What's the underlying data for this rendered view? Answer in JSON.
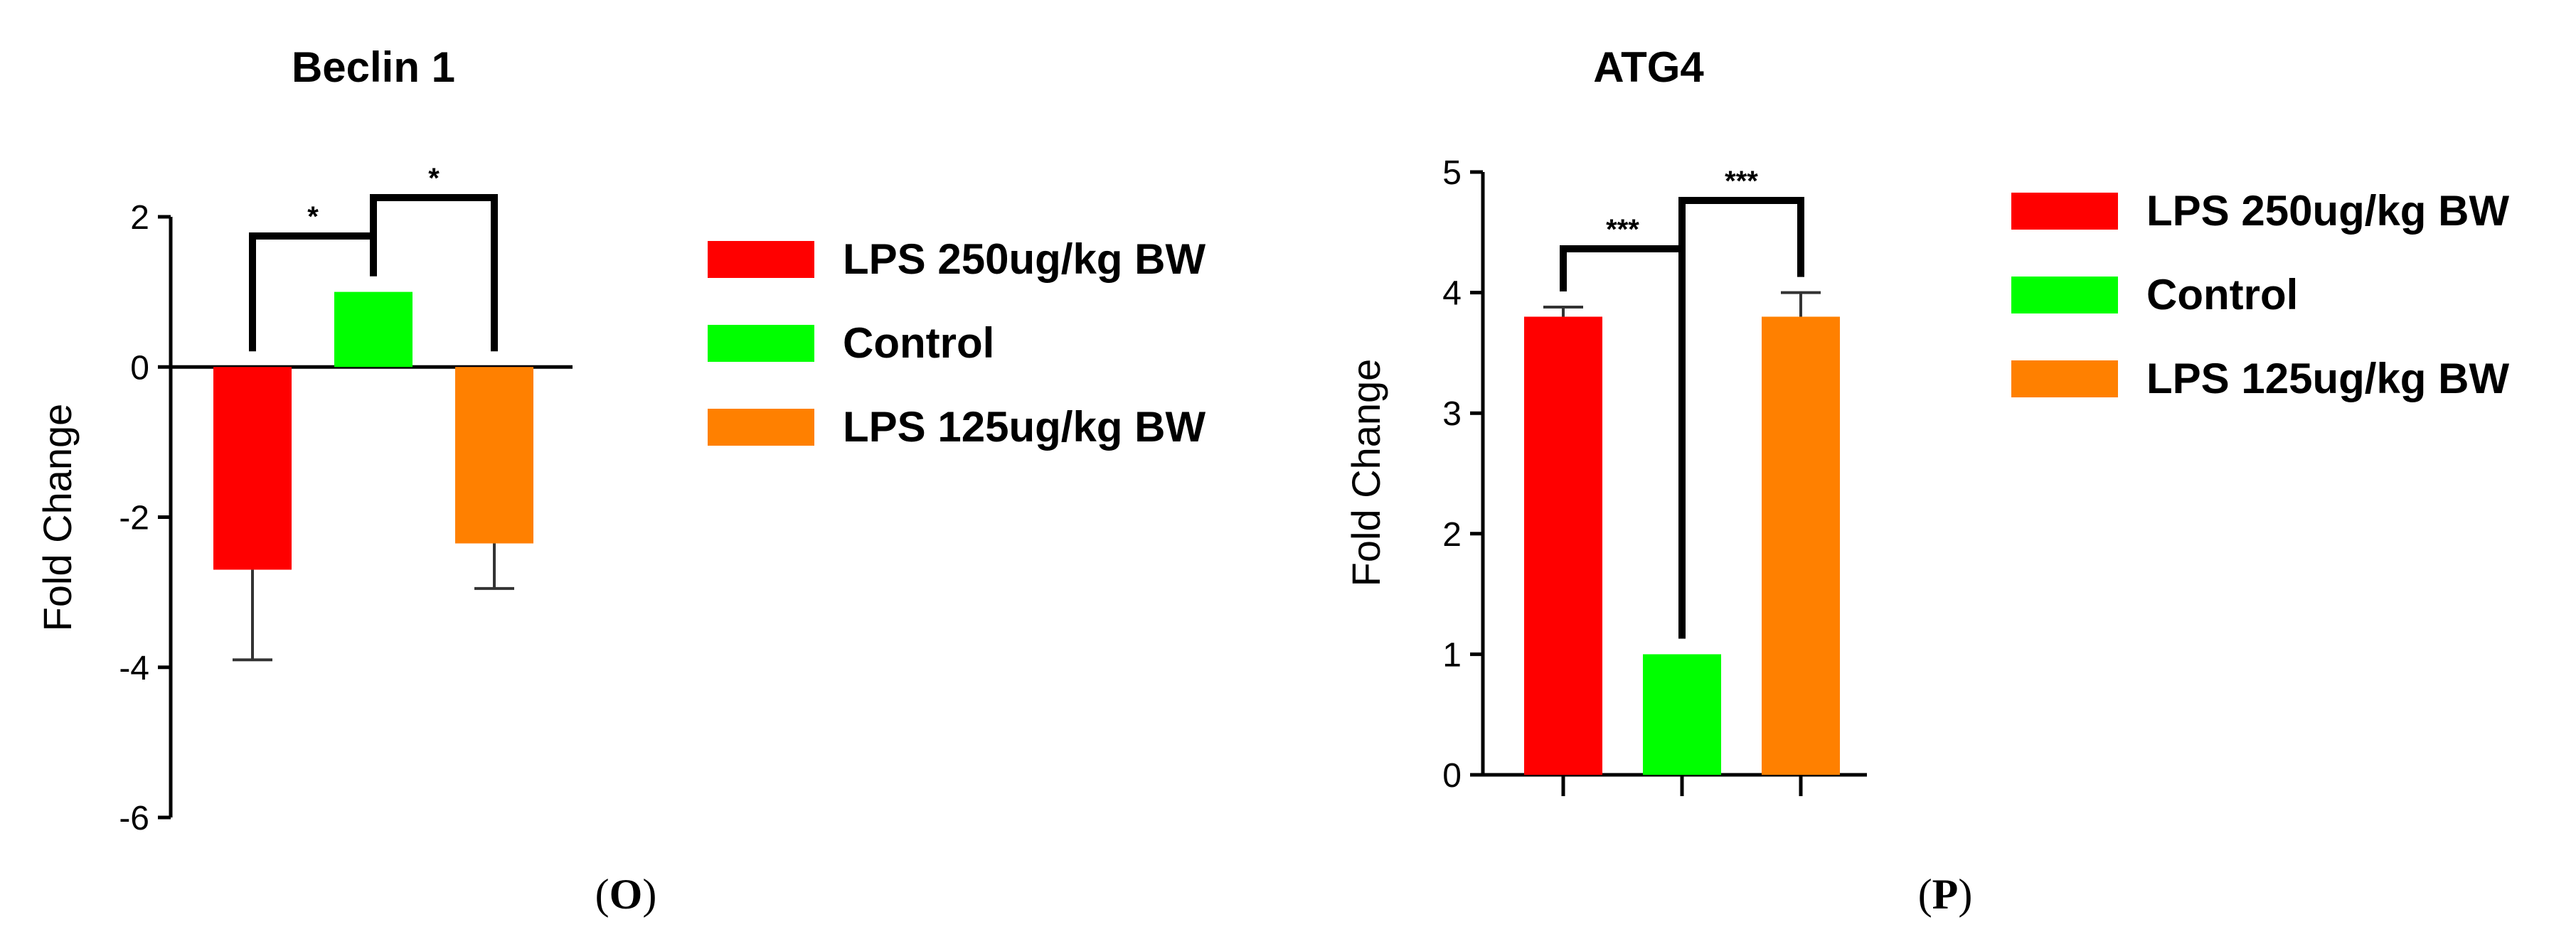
{
  "chart_data": [
    {
      "type": "bar",
      "title": "Beclin 1",
      "panel": "O",
      "xlabel": "",
      "ylabel": "Fold Change",
      "ylim": [
        -6,
        2
      ],
      "yticks": [
        2,
        0,
        -2,
        -4,
        -6
      ],
      "categories": [
        "LPS 250ug/kg BW",
        "Control",
        "LPS 125ug/kg BW"
      ],
      "values": [
        -2.7,
        1.0,
        -2.35
      ],
      "errors": [
        1.2,
        0,
        0.6
      ],
      "colors": [
        "#ff0000",
        "#00ff00",
        "#ff8000"
      ],
      "significance": [
        {
          "from": 0,
          "to": 1,
          "label": "*"
        },
        {
          "from": 1,
          "to": 2,
          "label": "*"
        }
      ],
      "legend": {
        "position": "right",
        "entries": [
          "LPS 250ug/kg BW",
          "Control",
          "LPS 125ug/kg BW"
        ]
      }
    },
    {
      "type": "bar",
      "title": "ATG4",
      "panel": "P",
      "xlabel": "",
      "ylabel": "Fold Change",
      "ylim": [
        0,
        5
      ],
      "yticks": [
        0,
        1,
        2,
        3,
        4,
        5
      ],
      "categories": [
        "LPS 250ug/kg BW",
        "Control",
        "LPS 125ug/kg BW"
      ],
      "values": [
        3.8,
        1.0,
        3.8
      ],
      "errors": [
        0.08,
        0,
        0.2
      ],
      "colors": [
        "#ff0000",
        "#00ff00",
        "#ff8000"
      ],
      "significance": [
        {
          "from": 0,
          "to": 1,
          "label": "***"
        },
        {
          "from": 1,
          "to": 2,
          "label": "***"
        }
      ],
      "legend": {
        "position": "right",
        "entries": [
          "LPS 250ug/kg BW",
          "Control",
          "LPS 125ug/kg BW"
        ]
      }
    }
  ]
}
